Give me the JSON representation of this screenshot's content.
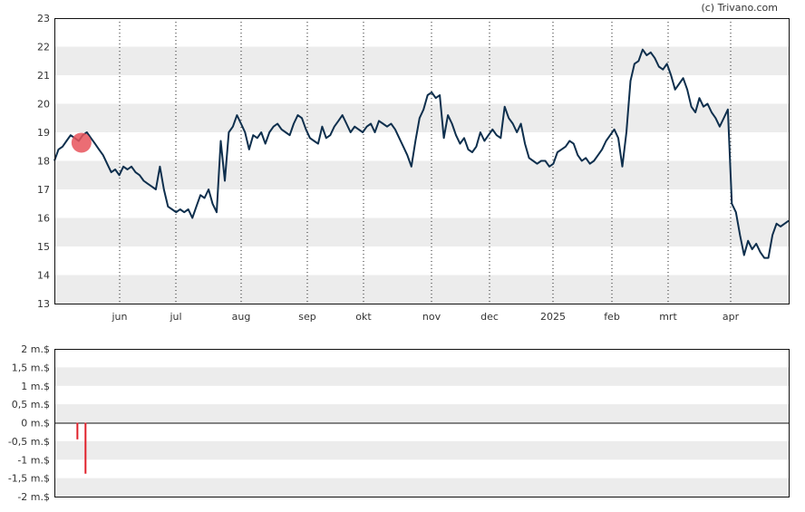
{
  "credit": "(c) Trivano.com",
  "colors": {
    "band": "#ececec",
    "price_line": "#0e2f4d",
    "marker": "#e8545c",
    "volume_bar": "#e0202a",
    "frame": "#111111",
    "month_grid": "#222222"
  },
  "chart_data": [
    {
      "type": "line",
      "title": "",
      "xlabel": "",
      "ylabel": "",
      "ylim": [
        13,
        23
      ],
      "y_ticks": [
        "23",
        "22",
        "21",
        "20",
        "19",
        "18",
        "17",
        "16",
        "15",
        "14",
        "13"
      ],
      "x_tick_labels": [
        "jun",
        "jul",
        "aug",
        "sep",
        "okt",
        "nov",
        "dec",
        "2025",
        "feb",
        "mrt",
        "apr"
      ],
      "grid": "alternating horizontal bands, dotted vertical month lines",
      "series": [
        {
          "values": [
            18.0,
            18.4,
            18.5,
            18.7,
            18.9,
            18.8,
            18.7,
            18.9,
            19.0,
            18.8,
            18.6,
            18.4,
            18.2,
            17.9,
            17.6,
            17.7,
            17.5,
            17.8,
            17.7,
            17.8,
            17.6,
            17.5,
            17.3,
            17.2,
            17.1,
            17.0,
            17.8,
            17.0,
            16.4,
            16.3,
            16.2,
            16.3,
            16.2,
            16.3,
            16.0,
            16.4,
            16.8,
            16.7,
            17.0,
            16.5,
            16.2,
            18.7,
            17.3,
            19.0,
            19.2,
            19.6,
            19.3,
            19.0,
            18.4,
            18.9,
            18.8,
            19.0,
            18.6,
            19.0,
            19.2,
            19.3,
            19.1,
            19.0,
            18.9,
            19.3,
            19.6,
            19.5,
            19.1,
            18.8,
            18.7,
            18.6,
            19.2,
            18.8,
            18.9,
            19.2,
            19.4,
            19.6,
            19.3,
            19.0,
            19.2,
            19.1,
            19.0,
            19.2,
            19.3,
            19.0,
            19.4,
            19.3,
            19.2,
            19.3,
            19.1,
            18.8,
            18.5,
            18.2,
            17.8,
            18.7,
            19.5,
            19.8,
            20.3,
            20.4,
            20.2,
            20.3,
            18.8,
            19.6,
            19.3,
            18.9,
            18.6,
            18.8,
            18.4,
            18.3,
            18.5,
            19.0,
            18.7,
            18.9,
            19.1,
            18.9,
            18.8,
            19.9,
            19.5,
            19.3,
            19.0,
            19.3,
            18.6,
            18.1,
            18.0,
            17.9,
            18.0,
            18.0,
            17.8,
            17.9,
            18.3,
            18.4,
            18.5,
            18.7,
            18.6,
            18.2,
            18.0,
            18.1,
            17.9,
            18.0,
            18.2,
            18.4,
            18.7,
            18.9,
            19.1,
            18.8,
            17.8,
            19.0,
            20.8,
            21.4,
            21.5,
            21.9,
            21.7,
            21.8,
            21.6,
            21.3,
            21.2,
            21.4,
            21.0,
            20.5,
            20.7,
            20.9,
            20.5,
            19.9,
            19.7,
            20.2,
            19.9,
            20.0,
            19.7,
            19.5,
            19.2,
            19.5,
            19.8,
            16.5,
            16.2,
            15.4,
            14.7,
            15.2,
            14.9,
            15.1,
            14.8,
            14.6,
            14.6,
            15.4,
            15.8,
            15.7,
            15.8,
            15.9
          ]
        }
      ],
      "marker_index": 6
    },
    {
      "type": "bar",
      "title": "",
      "xlabel": "",
      "ylabel": "",
      "ylim": [
        -2,
        2
      ],
      "y_ticks": [
        "2 m.$",
        "1,5 m.$",
        "1 m.$",
        "0,5 m.$",
        "0 m.$",
        "-0,5 m.$",
        "-1 m.$",
        "-1,5 m.$",
        "-2 m.$"
      ],
      "series": [
        {
          "index": 5,
          "value": -0.45
        },
        {
          "index": 7,
          "value": -1.38
        }
      ]
    }
  ]
}
